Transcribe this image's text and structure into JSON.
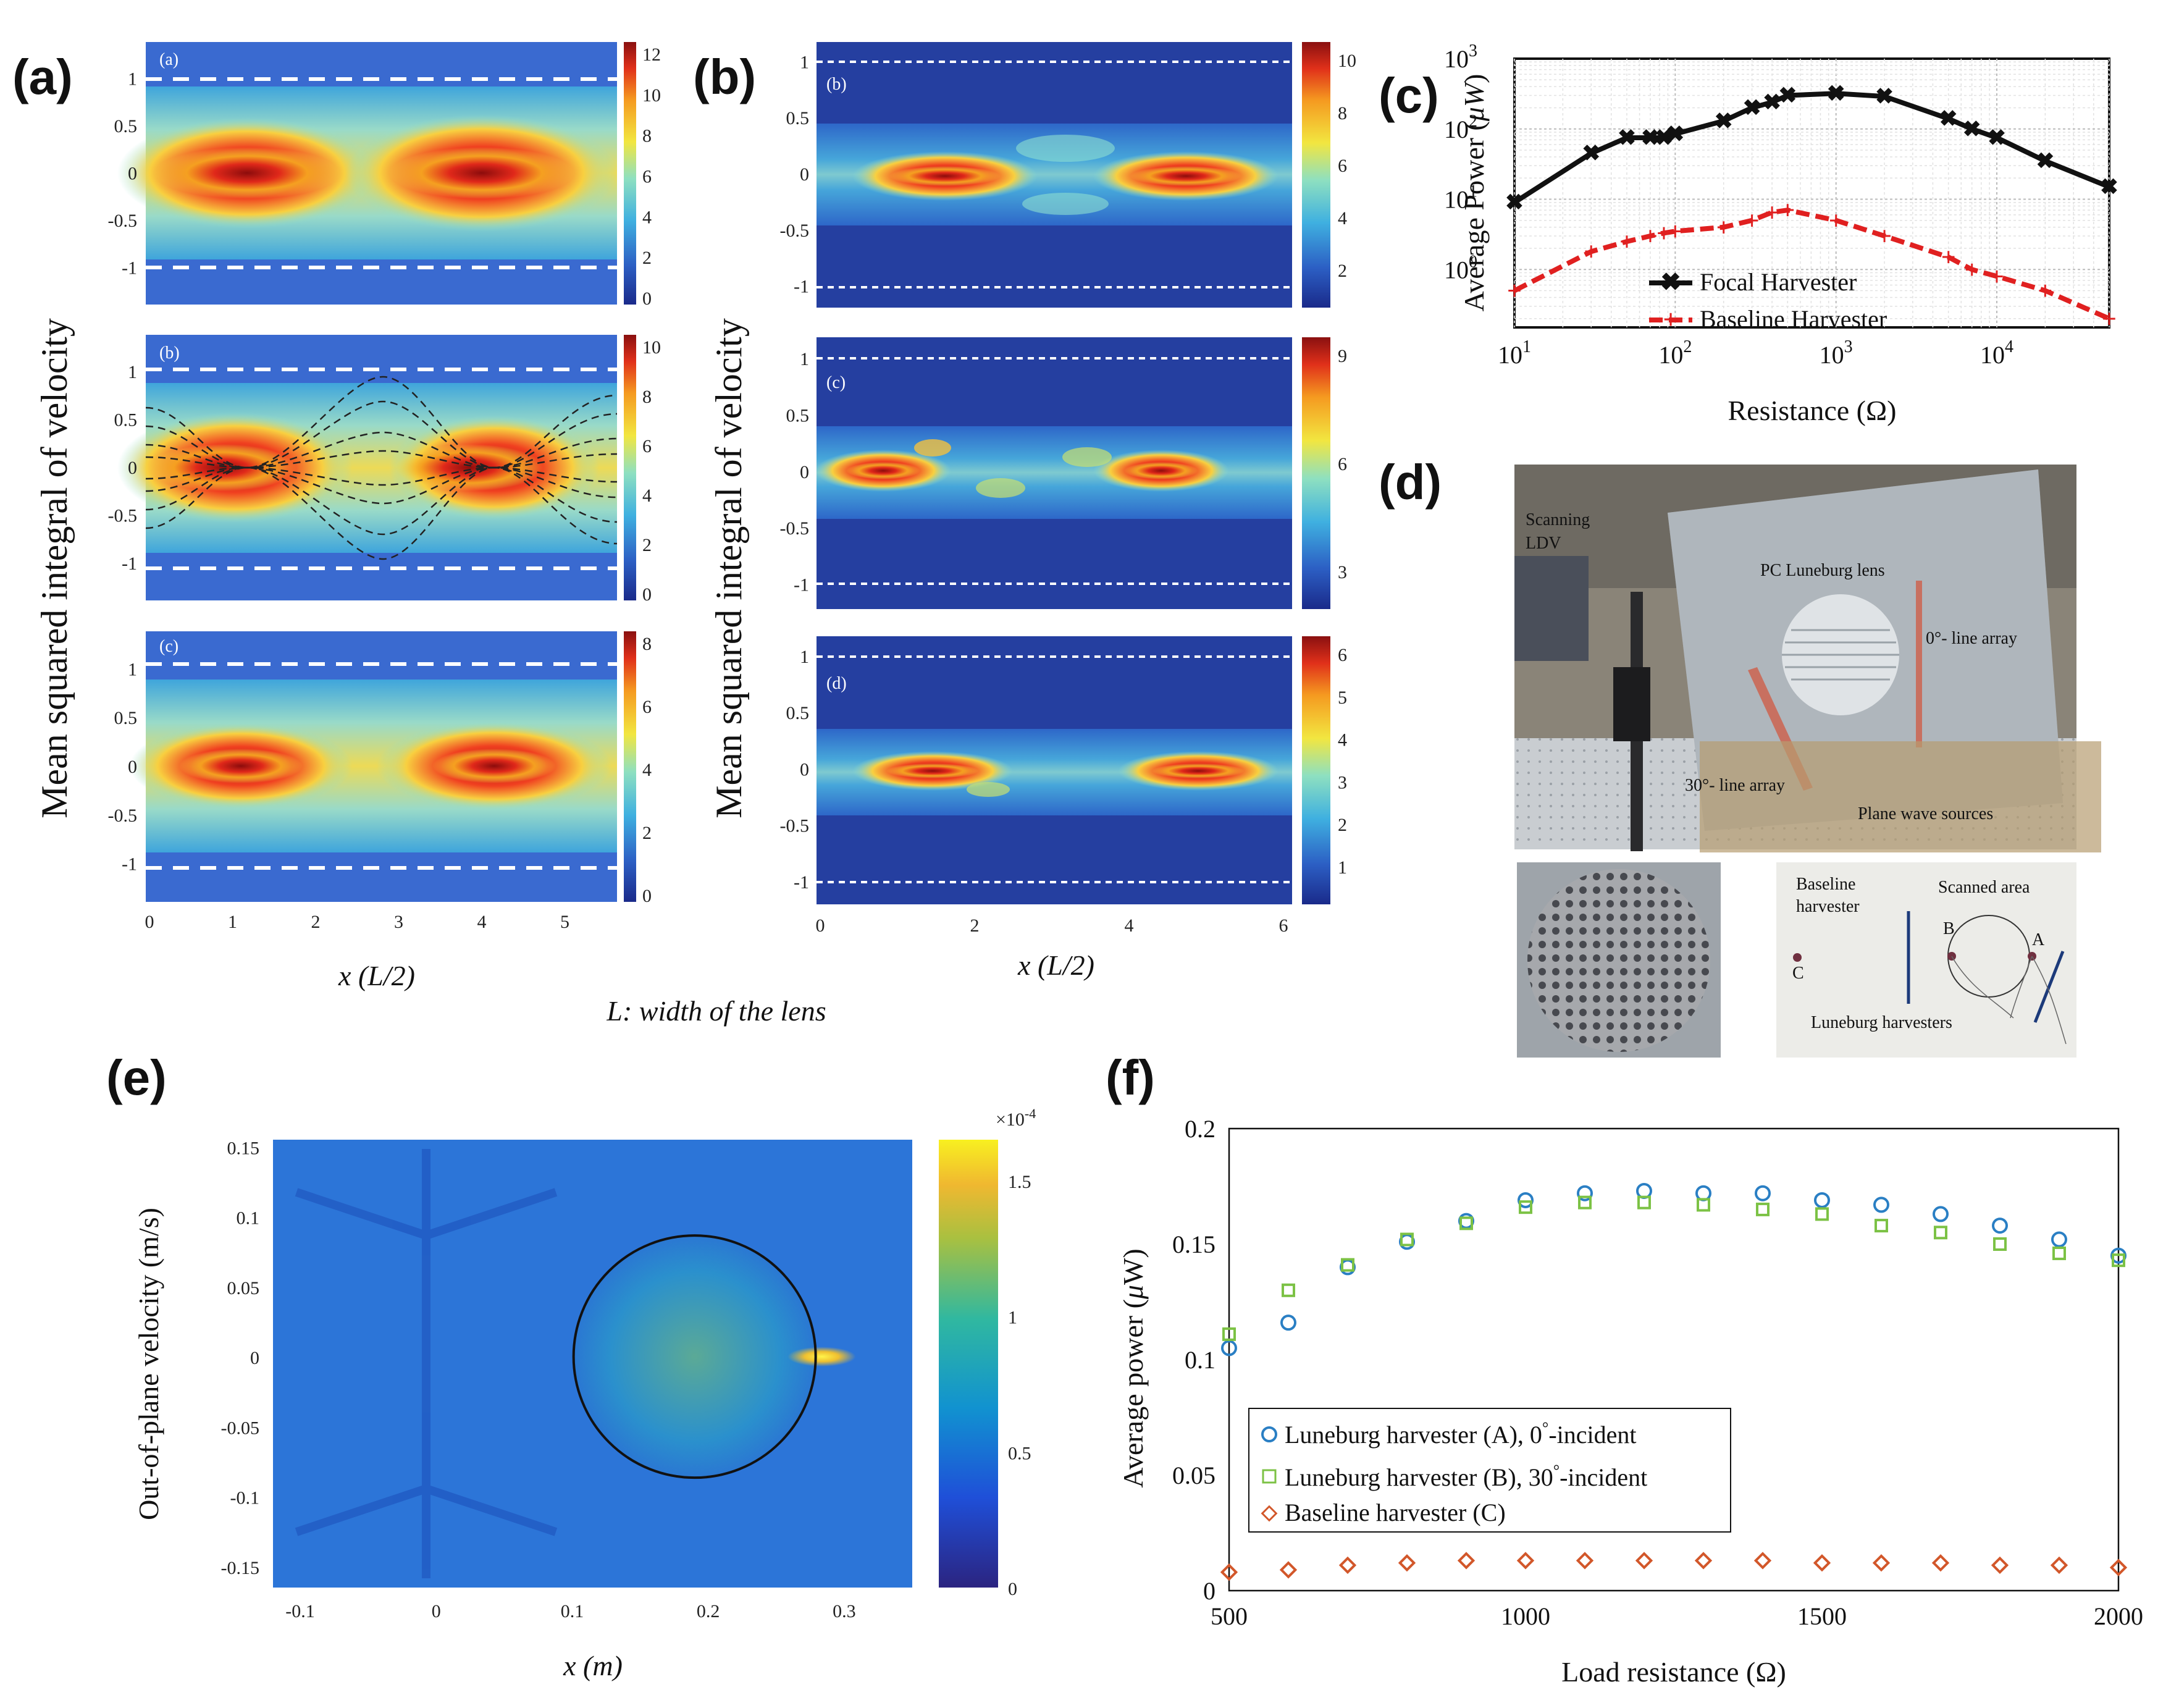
{
  "panel_labels": {
    "a": "(a)",
    "b": "(b)",
    "c": "(c)",
    "d": "(d)",
    "e": "(e)",
    "f": "(f)"
  },
  "caption": "L: width of the lens",
  "heatmaps_a": {
    "ylabel": "Mean squared integral of velocity",
    "xlabel": "x (L/2)",
    "subcaptions": [
      "(a)",
      "(b)",
      "(c)"
    ],
    "yticks": [
      "1",
      "0.5",
      "0",
      "-0.5",
      "-1"
    ],
    "xticks": [
      "0",
      "1",
      "2",
      "3",
      "4",
      "5"
    ],
    "colorbars": [
      [
        "12",
        "10",
        "8",
        "6",
        "4",
        "2",
        "0"
      ],
      [
        "10",
        "8",
        "6",
        "4",
        "2",
        "0"
      ],
      [
        "8",
        "6",
        "4",
        "2",
        "0"
      ]
    ]
  },
  "heatmaps_b": {
    "ylabel": "Mean squared integral of velocity",
    "xlabel": "x (L/2)",
    "subcaptions": [
      "(b)",
      "(c)",
      "(d)"
    ],
    "yticks": [
      "1",
      "0.5",
      "0",
      "-0.5",
      "-1"
    ],
    "xticks": [
      "0",
      "2",
      "4",
      "6"
    ],
    "colorbars": [
      [
        "10",
        "8",
        "6",
        "4",
        "2"
      ],
      [
        "9",
        "6",
        "3"
      ],
      [
        "6",
        "5",
        "4",
        "3",
        "2",
        "1"
      ]
    ]
  },
  "chart_data": [
    {
      "id": "c",
      "type": "line",
      "xscale": "log",
      "yscale": "log",
      "xlabel": "Resistance (Ω)",
      "ylabel": "Average Power (μW)",
      "xlim": [
        10,
        50000
      ],
      "ylim": [
        0.15,
        1000
      ],
      "xticks": [
        "10^1",
        "10^2",
        "10^3",
        "10^4"
      ],
      "yticks": [
        "10^0",
        "10^1",
        "10^2",
        "10^3"
      ],
      "series": [
        {
          "name": "Focal Harvester",
          "color": "#111111",
          "x": [
            10,
            30,
            50,
            70,
            85,
            100,
            200,
            300,
            400,
            500,
            1000,
            2000,
            5000,
            7000,
            10000,
            20000,
            50000
          ],
          "y": [
            9,
            45,
            75,
            75,
            75,
            85,
            130,
            200,
            240,
            300,
            320,
            290,
            140,
            100,
            75,
            35,
            15
          ]
        },
        {
          "name": "Baseline Harvester",
          "color": "#e02020",
          "x": [
            10,
            30,
            50,
            70,
            85,
            100,
            200,
            300,
            400,
            500,
            1000,
            2000,
            5000,
            7000,
            10000,
            20000,
            50000
          ],
          "y": [
            0.5,
            1.8,
            2.5,
            3,
            3.3,
            3.5,
            4,
            5,
            6.5,
            7,
            5,
            3,
            1.5,
            1,
            0.8,
            0.5,
            0.2
          ]
        }
      ]
    },
    {
      "id": "e",
      "type": "heatmap",
      "xlabel": "x (m)",
      "ylabel": "Out-of-plane velocity (m/s)",
      "xticks": [
        "-0.1",
        "0",
        "0.1",
        "0.2",
        "0.3"
      ],
      "yticks": [
        "0.15",
        "0.1",
        "0.05",
        "0",
        "-0.05",
        "-0.1",
        "-0.15"
      ],
      "xlim": [
        -0.12,
        0.35
      ],
      "ylim": [
        -0.165,
        0.155
      ],
      "colorbar_ticks": [
        "1.5",
        "1",
        "0.5",
        "0"
      ],
      "colorbar_exponent": "×10",
      "colorbar_exponent_power": "-4",
      "colorbar_range": [
        0,
        1.65
      ],
      "lens_circle": {
        "center_x": 0.19,
        "center_y": 0.0,
        "radius": 0.089
      }
    },
    {
      "id": "f",
      "type": "scatter",
      "xlabel": "Load resistance (Ω)",
      "ylabel": "Average power (μW)",
      "xlim": [
        500,
        2000
      ],
      "ylim": [
        0,
        0.2
      ],
      "xticks": [
        "500",
        "1000",
        "1500",
        "2000"
      ],
      "yticks": [
        "0.2",
        "0.15",
        "0.1",
        "0.05",
        "0"
      ],
      "x": [
        500,
        600,
        700,
        800,
        900,
        1000,
        1100,
        1200,
        1300,
        1400,
        1500,
        1600,
        1700,
        1800,
        1900,
        2000
      ],
      "series": [
        {
          "name": "Luneburg harvester (A), 0°-incident",
          "label_main": "Luneburg harvester (A), 0",
          "label_sup": "°",
          "label_tail": "-incident",
          "marker": "circle",
          "color": "#2a7fc4",
          "values": [
            0.105,
            0.116,
            0.14,
            0.151,
            0.16,
            0.169,
            0.172,
            0.173,
            0.172,
            0.172,
            0.169,
            0.167,
            0.163,
            0.158,
            0.152,
            0.145
          ]
        },
        {
          "name": "Luneburg harvester (B), 30°-incident",
          "label_main": "Luneburg harvester (B), 30",
          "label_sup": "°",
          "label_tail": "-incident",
          "marker": "square",
          "color": "#7cc245",
          "values": [
            0.111,
            0.13,
            0.141,
            0.152,
            0.159,
            0.166,
            0.168,
            0.168,
            0.167,
            0.165,
            0.163,
            0.158,
            0.155,
            0.15,
            0.146,
            0.143
          ]
        },
        {
          "name": "Baseline harvester (C)",
          "label_main": "Baseline harvester (C)",
          "label_sup": "",
          "label_tail": "",
          "marker": "diamond",
          "color": "#d2572a",
          "values": [
            0.008,
            0.009,
            0.011,
            0.012,
            0.013,
            0.013,
            0.013,
            0.013,
            0.013,
            0.013,
            0.012,
            0.012,
            0.012,
            0.011,
            0.011,
            0.01
          ]
        }
      ]
    }
  ],
  "photo_d": {
    "main_labels": [
      "Scanning",
      "LDV",
      "PC Luneburg lens",
      "0°- line array",
      "30°- line array",
      "Plane wave sources"
    ],
    "inset_labels": [
      "Baseline",
      "harvester",
      "Scanned area",
      "B",
      "A",
      "C",
      "Luneburg harvesters"
    ]
  }
}
